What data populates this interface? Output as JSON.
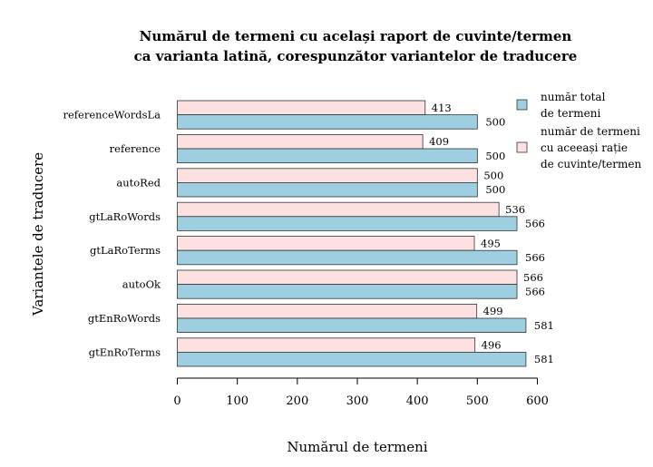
{
  "chart_data": {
    "type": "bar",
    "orientation": "horizontal",
    "title_line1": "Numărul de termeni cu același raport de cuvinte/termen",
    "title_line2": "ca varianta latină, corespunzător variantelor de traducere",
    "xlabel": "Numărul de termeni",
    "ylabel": "Variantele de traducere",
    "xlim": [
      0,
      600
    ],
    "xticks": [
      "0",
      "100",
      "200",
      "300",
      "400",
      "500",
      "600"
    ],
    "categories": [
      "referenceWordsLa",
      "reference",
      "autoRed",
      "gtLaRoWords",
      "gtLaRoTerms",
      "autoOk",
      "gtEnRoWords",
      "gtEnRoTerms"
    ],
    "series": [
      {
        "legend_lines": [
          "număr total",
          "de termeni"
        ],
        "color": "#9ecfe0",
        "values": [
          500,
          500,
          500,
          566,
          566,
          566,
          581,
          581
        ]
      },
      {
        "legend_lines": [
          "număr de termeni",
          "cu aceeași rație",
          "de cuvinte/termen"
        ],
        "color": "#fde0e0",
        "values": [
          413,
          409,
          500,
          536,
          495,
          566,
          499,
          496
        ]
      }
    ],
    "legend_position": "top-right",
    "grid": false
  }
}
